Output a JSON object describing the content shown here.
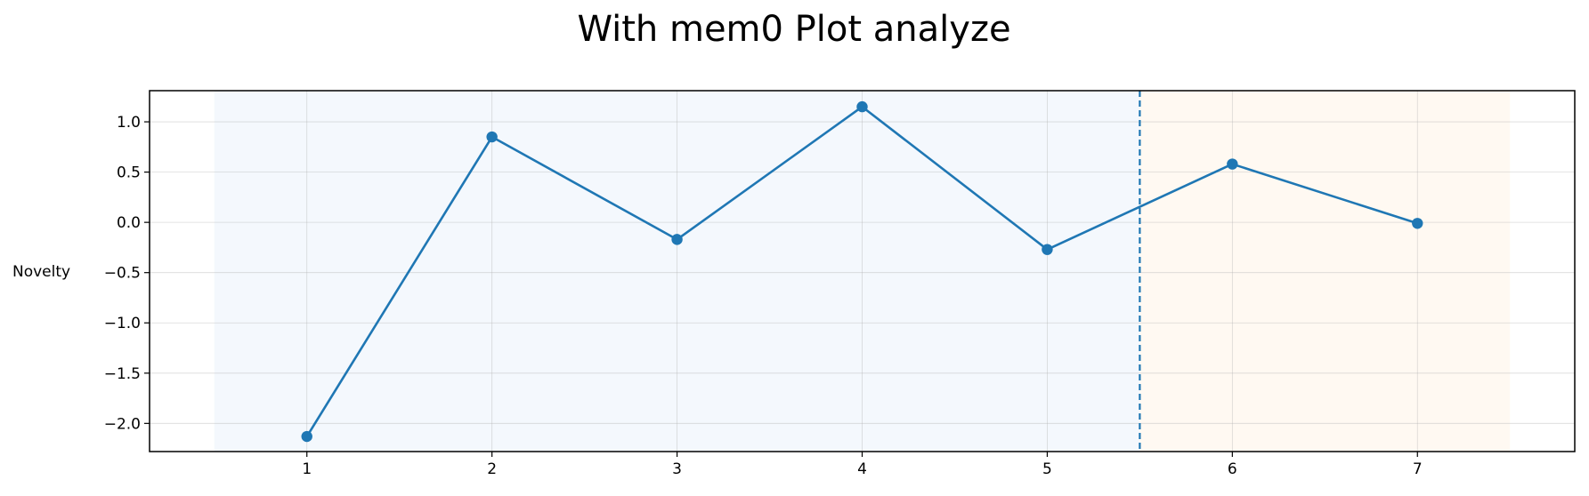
{
  "chart_data": {
    "type": "line",
    "title": "With mem0 Plot analyze",
    "xlabel": "",
    "ylabel": "Novelty",
    "x": [
      1,
      2,
      3,
      4,
      5,
      6,
      7
    ],
    "series": [
      {
        "name": "Novelty",
        "values": [
          -2.13,
          0.85,
          -0.17,
          1.15,
          -0.27,
          0.58,
          -0.01
        ]
      }
    ],
    "xlim": [
      0.15,
      7.85
    ],
    "ylim": [
      -2.28,
      1.31
    ],
    "xticks": [
      1,
      2,
      3,
      4,
      5,
      6,
      7
    ],
    "yticks": [
      1.0,
      0.5,
      0.0,
      -0.5,
      -1.0,
      -1.5,
      -2.0
    ],
    "ytick_labels": [
      "1.0",
      "0.5",
      "0.0",
      "−0.5",
      "−1.0",
      "−1.5",
      "−2.0"
    ],
    "grid": true,
    "shaded_regions": [
      {
        "name": "phase-1",
        "x_start": 0.5,
        "x_end": 5.5,
        "color": "#f4f8fd"
      },
      {
        "name": "phase-2",
        "x_start": 5.5,
        "x_end": 7.5,
        "color": "#fff9f2"
      }
    ],
    "vline": {
      "x": 5.5,
      "style": "dashed",
      "color": "#1f77b4"
    },
    "line_color": "#1f77b4"
  }
}
